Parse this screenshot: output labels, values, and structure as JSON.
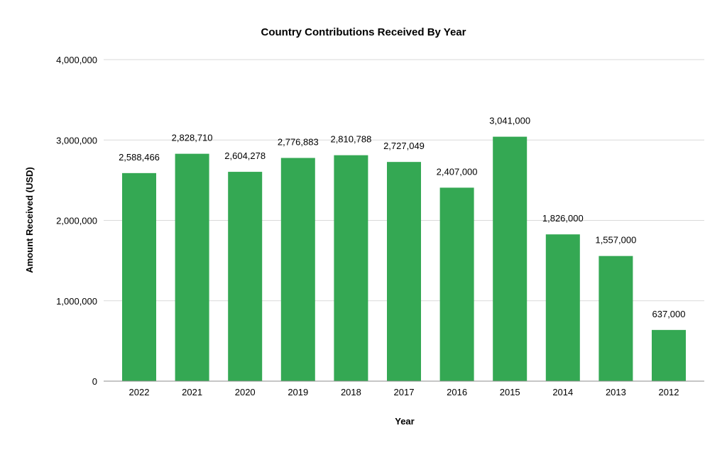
{
  "chart_data": {
    "type": "bar",
    "title": "Country Contributions Received By Year",
    "xlabel": "Year",
    "ylabel": "Amount Received (USD)",
    "categories": [
      "2022",
      "2021",
      "2020",
      "2019",
      "2018",
      "2017",
      "2016",
      "2015",
      "2014",
      "2013",
      "2012"
    ],
    "values": [
      2588466,
      2828710,
      2604278,
      2776883,
      2810788,
      2727049,
      2407000,
      3041000,
      1826000,
      1557000,
      637000
    ],
    "data_labels": [
      "2,588,466",
      "2,828,710",
      "2,604,278",
      "2,776,883",
      "2,810,788",
      "2,727,049",
      "2,407,000",
      "3,041,000",
      "1,826,000",
      "1,557,000",
      "637,000"
    ],
    "ylim": [
      0,
      4000000
    ],
    "yticks": [
      0,
      1000000,
      2000000,
      3000000,
      4000000
    ],
    "ytick_labels": [
      "0",
      "1,000,000",
      "2,000,000",
      "3,000,000",
      "4,000,000"
    ],
    "grid": true,
    "legend": "none",
    "colors": {
      "bar": "#34a853",
      "grid": "#d9d9d9",
      "axis": "#8c8c8c"
    }
  }
}
